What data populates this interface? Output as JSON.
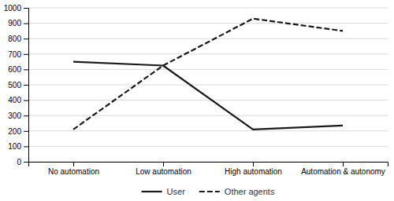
{
  "chart_data": {
    "type": "line",
    "categories": [
      "No automation",
      "Low automation",
      "High automation",
      "Automation & autonomy"
    ],
    "series": [
      {
        "name": "User",
        "color": "#1a1a1a",
        "line_style": "solid",
        "values": [
          650,
          625,
          210,
          235
        ]
      },
      {
        "name": "Other agents",
        "color": "#1a1a1a",
        "line_style": "dashed",
        "values": [
          210,
          625,
          930,
          850
        ]
      }
    ],
    "ylim": [
      0,
      1000
    ],
    "yticks": [
      0,
      100,
      200,
      300,
      400,
      500,
      600,
      700,
      800,
      900,
      1000
    ],
    "grid": true,
    "legend": "bottom"
  }
}
